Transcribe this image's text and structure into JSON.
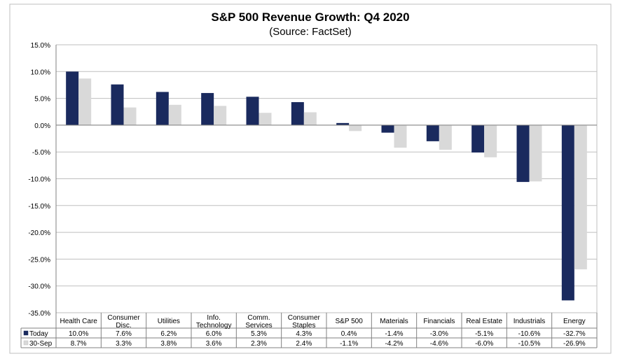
{
  "chart_data": {
    "type": "bar",
    "title": "S&P 500 Revenue Growth: Q4 2020",
    "subtitle": "(Source: FactSet)",
    "xlabel": "",
    "ylabel": "",
    "ylim": [
      -35,
      15
    ],
    "y_step": 5,
    "y_tick_suffix": "%",
    "grid": true,
    "categories": [
      [
        "Health Care"
      ],
      [
        "Consumer",
        "Disc."
      ],
      [
        "Utilities"
      ],
      [
        "Info.",
        "Technology"
      ],
      [
        "Comm.",
        "Services"
      ],
      [
        "Consumer",
        "Staples"
      ],
      [
        "S&P 500"
      ],
      [
        "Materials"
      ],
      [
        "Financials"
      ],
      [
        "Real Estate"
      ],
      [
        "Industrials"
      ],
      [
        "Energy"
      ]
    ],
    "series": [
      {
        "name": "Today",
        "color": "#1a2a5e",
        "values": [
          10.0,
          7.6,
          6.2,
          6.0,
          5.3,
          4.3,
          0.4,
          -1.4,
          -3.0,
          -5.1,
          -10.6,
          -32.7
        ],
        "labels": [
          "10.0%",
          "7.6%",
          "6.2%",
          "6.0%",
          "5.3%",
          "4.3%",
          "0.4%",
          "-1.4%",
          "-3.0%",
          "-5.1%",
          "-10.6%",
          "-32.7%"
        ]
      },
      {
        "name": "30-Sep",
        "color": "#d9d9d9",
        "values": [
          8.7,
          3.3,
          3.8,
          3.6,
          2.3,
          2.4,
          -1.1,
          -4.2,
          -4.6,
          -6.0,
          -10.5,
          -26.9
        ],
        "labels": [
          "8.7%",
          "3.3%",
          "3.8%",
          "3.6%",
          "2.3%",
          "2.4%",
          "-1.1%",
          "-4.2%",
          "-4.6%",
          "-6.0%",
          "-10.5%",
          "-26.9%"
        ]
      }
    ]
  }
}
